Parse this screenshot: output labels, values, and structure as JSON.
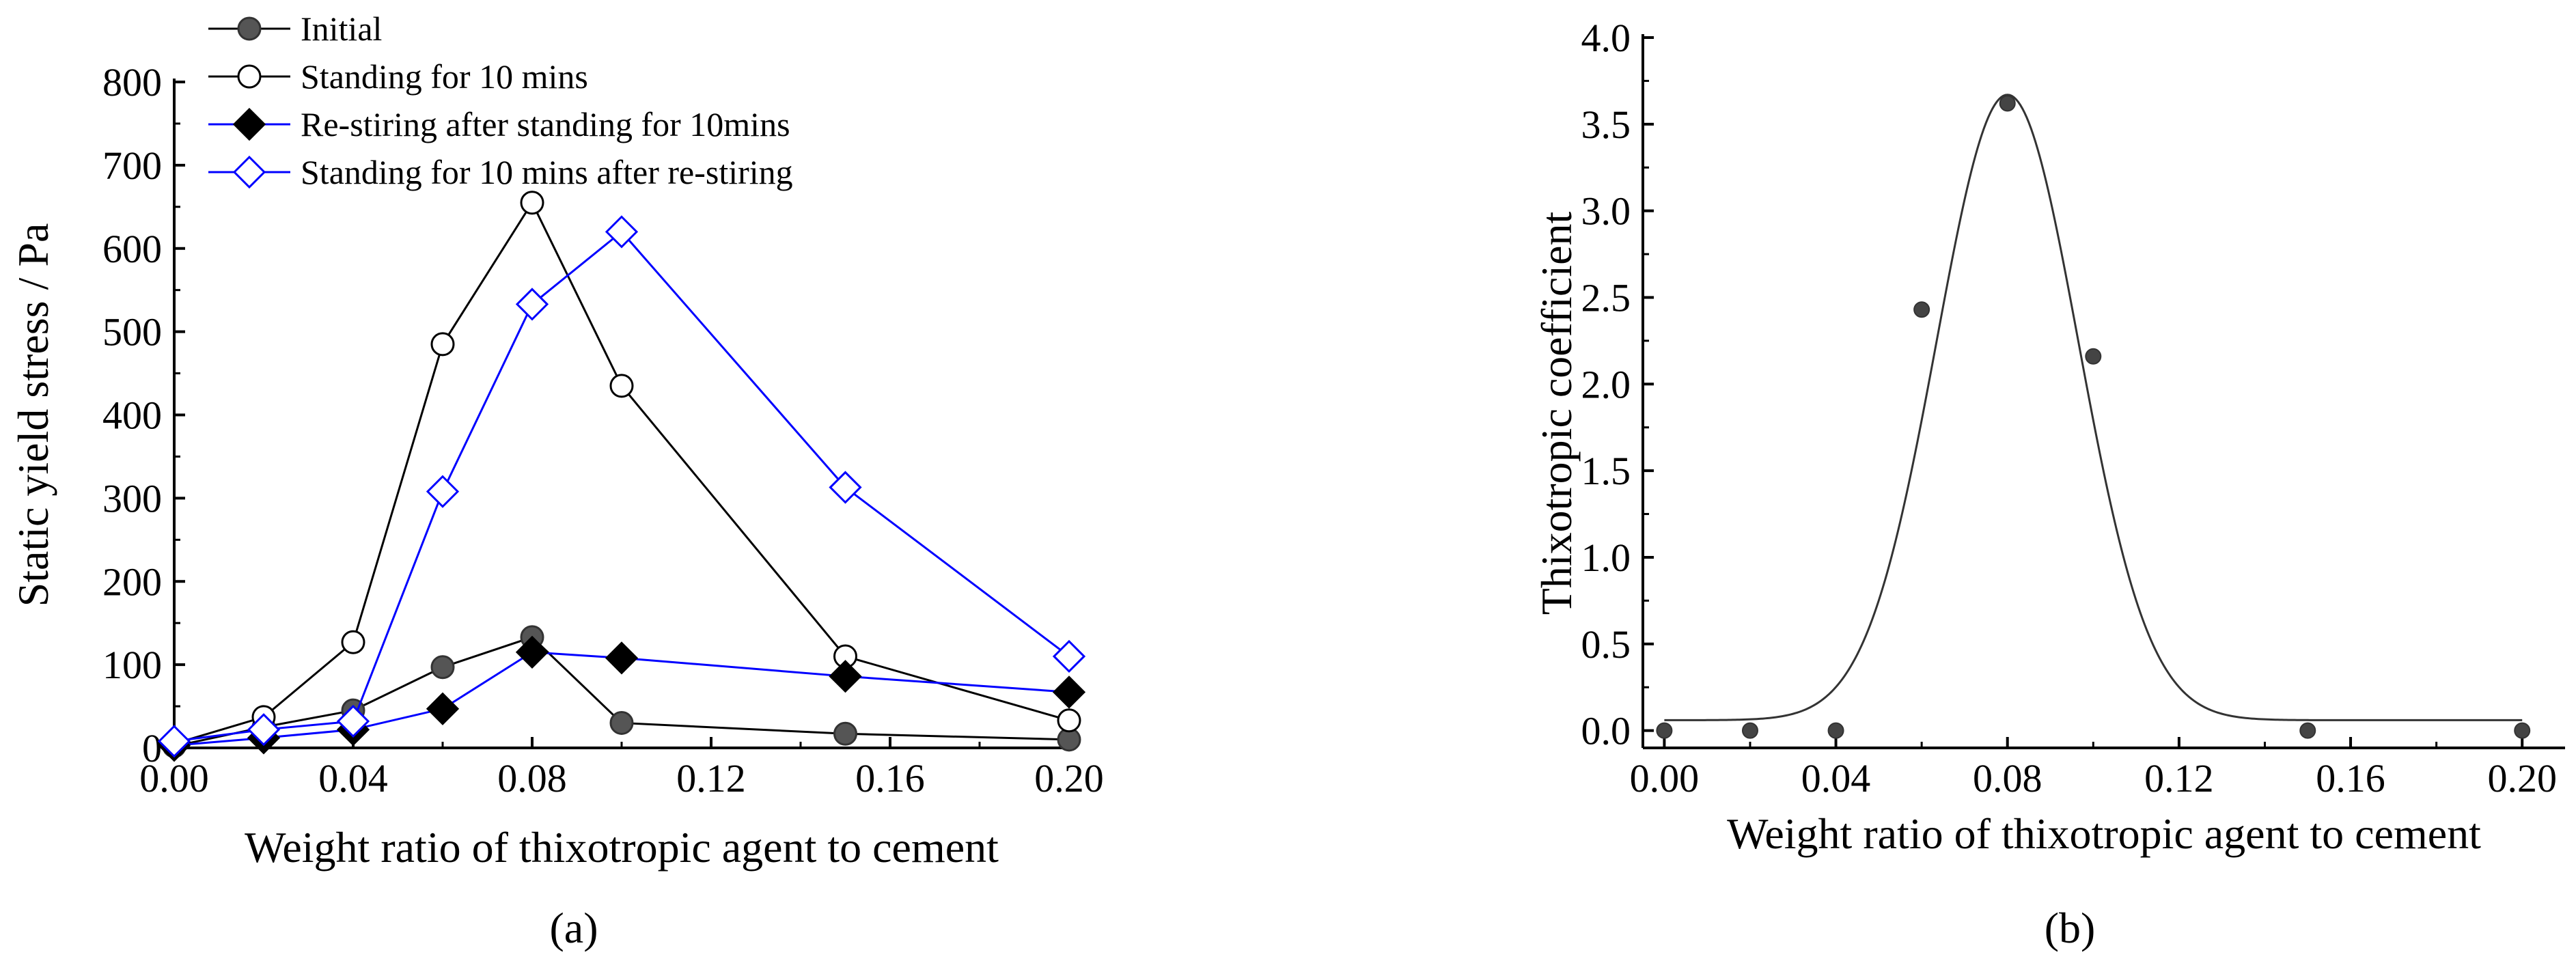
{
  "chart_data": [
    {
      "type": "line",
      "panel_label": "(a)",
      "xlabel": "Weight ratio of thixotropic agent to cement",
      "ylabel": "Static yield stress / Pa",
      "xlim": [
        0.0,
        0.2
      ],
      "ylim": [
        0,
        800
      ],
      "xticks": [
        "0.00",
        "0.04",
        "0.08",
        "0.12",
        "0.16",
        "0.20"
      ],
      "yticks": [
        "0",
        "100",
        "200",
        "300",
        "400",
        "500",
        "600",
        "700",
        "800"
      ],
      "grid": false,
      "legend_position": "top-left",
      "x": [
        0.0,
        0.02,
        0.04,
        0.06,
        0.08,
        0.1,
        0.15,
        0.2
      ],
      "series": [
        {
          "name": "Initial",
          "color": "#000000",
          "marker": "filled-circle",
          "values": [
            2,
            25,
            45,
            97,
            133,
            30,
            17,
            10
          ]
        },
        {
          "name": "Standing for 10 mins",
          "color": "#000000",
          "marker": "open-circle",
          "values": [
            5,
            37,
            127,
            485,
            655,
            435,
            110,
            33
          ]
        },
        {
          "name": "Re-stiring after standing for 10mins",
          "color": "#0000ff",
          "marker": "filled-diamond",
          "values": [
            3,
            12,
            22,
            47,
            115,
            108,
            86,
            67
          ]
        },
        {
          "name": "Standing for 10 mins after re-stiring",
          "color": "#0000ff",
          "marker": "open-diamond",
          "values": [
            8,
            22,
            32,
            308,
            533,
            620,
            313,
            110
          ]
        }
      ]
    },
    {
      "type": "scatter",
      "panel_label": "(b)",
      "xlabel": "Weight ratio of thixotropic agent to cement",
      "ylabel": "Thixotropic coefficient",
      "xlim": [
        -0.005,
        0.21
      ],
      "ylim": [
        -0.1,
        4.0
      ],
      "xticks": [
        "0.00",
        "0.04",
        "0.08",
        "0.12",
        "0.16",
        "0.20"
      ],
      "yticks": [
        "0.0",
        "0.5",
        "1.0",
        "1.5",
        "2.0",
        "2.5",
        "3.0",
        "3.5",
        "4.0"
      ],
      "grid": false,
      "x": [
        0.0,
        0.02,
        0.04,
        0.06,
        0.08,
        0.1,
        0.15,
        0.2
      ],
      "values": [
        0.0,
        0.0,
        0.0,
        2.43,
        3.62,
        2.16,
        0.0,
        0.0
      ],
      "fit_curve": {
        "type": "gaussian",
        "baseline": 0.06,
        "amplitude": 3.61,
        "center": 0.08,
        "sigma": 0.0165
      }
    }
  ]
}
